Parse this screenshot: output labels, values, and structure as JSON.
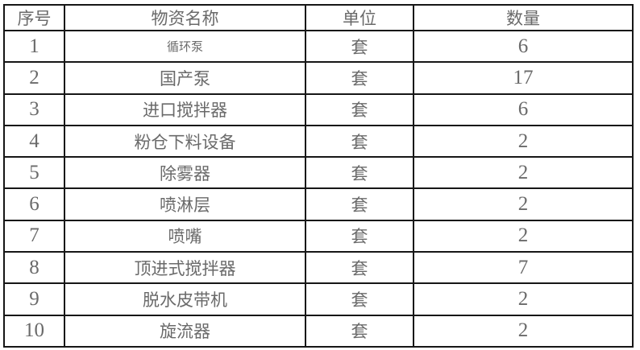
{
  "colors": {
    "background": "#ffffff",
    "border": "#161616",
    "text": "#6a6a6a"
  },
  "table": {
    "headers": [
      {
        "key": "no",
        "label": "序号"
      },
      {
        "key": "name",
        "label": "物资名称"
      },
      {
        "key": "unit",
        "label": "单位"
      },
      {
        "key": "qty",
        "label": "数量"
      }
    ],
    "rows": [
      {
        "no": "1",
        "name": "循环泵",
        "unit": "套",
        "qty": "6"
      },
      {
        "no": "2",
        "name": "国产泵",
        "unit": "套",
        "qty": "17"
      },
      {
        "no": "3",
        "name": "进口搅拌器",
        "unit": "套",
        "qty": "6"
      },
      {
        "no": "4",
        "name": "粉仓下料设备",
        "unit": "套",
        "qty": "2"
      },
      {
        "no": "5",
        "name": "除雾器",
        "unit": "套",
        "qty": "2"
      },
      {
        "no": "6",
        "name": "喷淋层",
        "unit": "套",
        "qty": "2"
      },
      {
        "no": "7",
        "name": "喷嘴",
        "unit": "套",
        "qty": "2"
      },
      {
        "no": "8",
        "name": "顶进式搅拌器",
        "unit": "套",
        "qty": "7"
      },
      {
        "no": "9",
        "name": "脱水皮带机",
        "unit": "套",
        "qty": "2"
      },
      {
        "no": "10",
        "name": "旋流器",
        "unit": "套",
        "qty": "2"
      }
    ]
  }
}
